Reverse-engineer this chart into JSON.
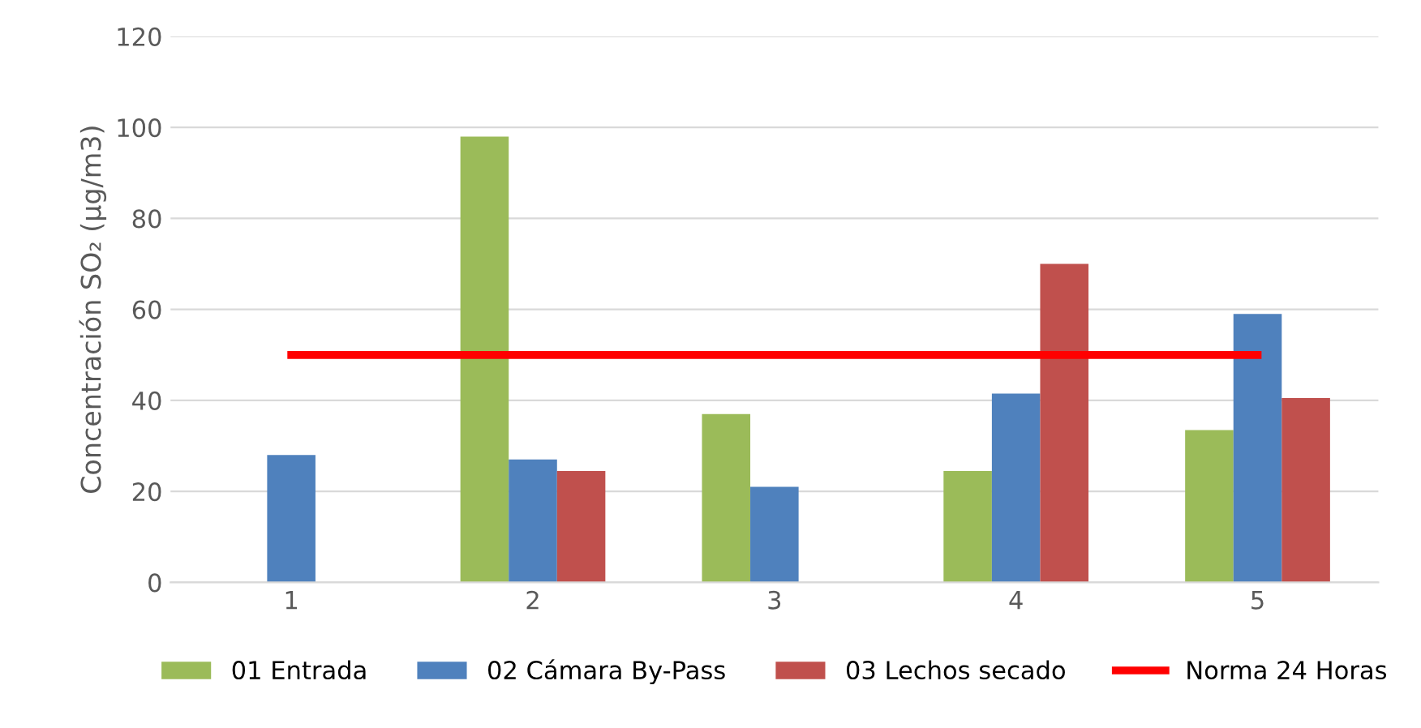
{
  "chart_data": {
    "type": "bar",
    "ylabel": "Concentración SO₂ (µg/m3)",
    "categories": [
      "1",
      "2",
      "3",
      "4",
      "5"
    ],
    "series": [
      {
        "name": "01 Entrada",
        "color": "#9bbb59",
        "values": [
          null,
          98,
          37,
          24.5,
          33.5
        ]
      },
      {
        "name": "02 Cámara By-Pass",
        "color": "#4f81bd",
        "values": [
          28,
          27,
          21,
          41.5,
          59
        ]
      },
      {
        "name": "03 Lechos secado",
        "color": "#c0504d",
        "values": [
          null,
          24.5,
          null,
          70,
          40.5
        ]
      },
      {
        "name": "Norma 24 Horas",
        "type": "line",
        "color": "#ff0000",
        "values": [
          50,
          50,
          50,
          50,
          50
        ]
      }
    ],
    "ylim": [
      0,
      120
    ],
    "yticks": [
      0,
      20,
      40,
      60,
      80,
      100,
      120
    ],
    "grid": "y",
    "legend": "bottom",
    "marker": "none",
    "line_style": "solid"
  }
}
